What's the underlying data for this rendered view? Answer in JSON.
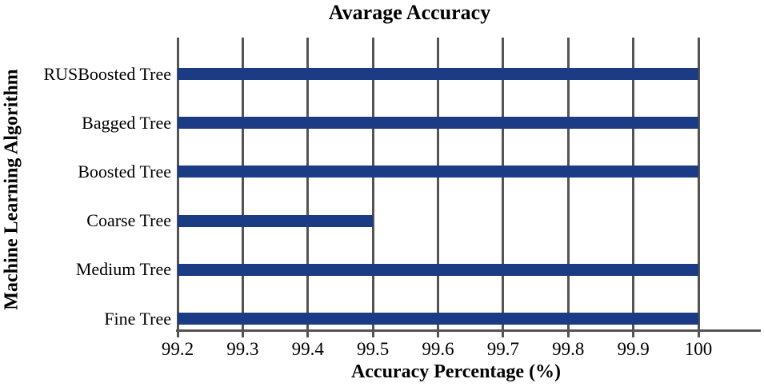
{
  "chart_data": {
    "type": "bar",
    "orientation": "horizontal",
    "title": "Avarage Accuracy",
    "xlabel": "Accuracy Percentage (%)",
    "ylabel": "Machine Learning Algorithm",
    "categories": [
      "RUSBoosted Tree",
      "Bagged Tree",
      "Boosted Tree",
      "Coarse Tree",
      "Medium Tree",
      "Fine Tree"
    ],
    "values": [
      100,
      100,
      100,
      99.5,
      100,
      100
    ],
    "xlim": [
      99.2,
      100.1
    ],
    "xticks": [
      99.2,
      99.3,
      99.4,
      99.5,
      99.6,
      99.7,
      99.8,
      99.9,
      100
    ],
    "xtick_labels": [
      "99.2",
      "99.3",
      "99.4",
      "99.5",
      "99.6",
      "99.7",
      "99.8",
      "99.9",
      "100"
    ],
    "grid": true,
    "legend": false,
    "bar_color": "#1b3b85",
    "axis_color": "#545454",
    "grid_color": "#545454",
    "text_color": "#000000",
    "background_color": "#ffffff"
  }
}
